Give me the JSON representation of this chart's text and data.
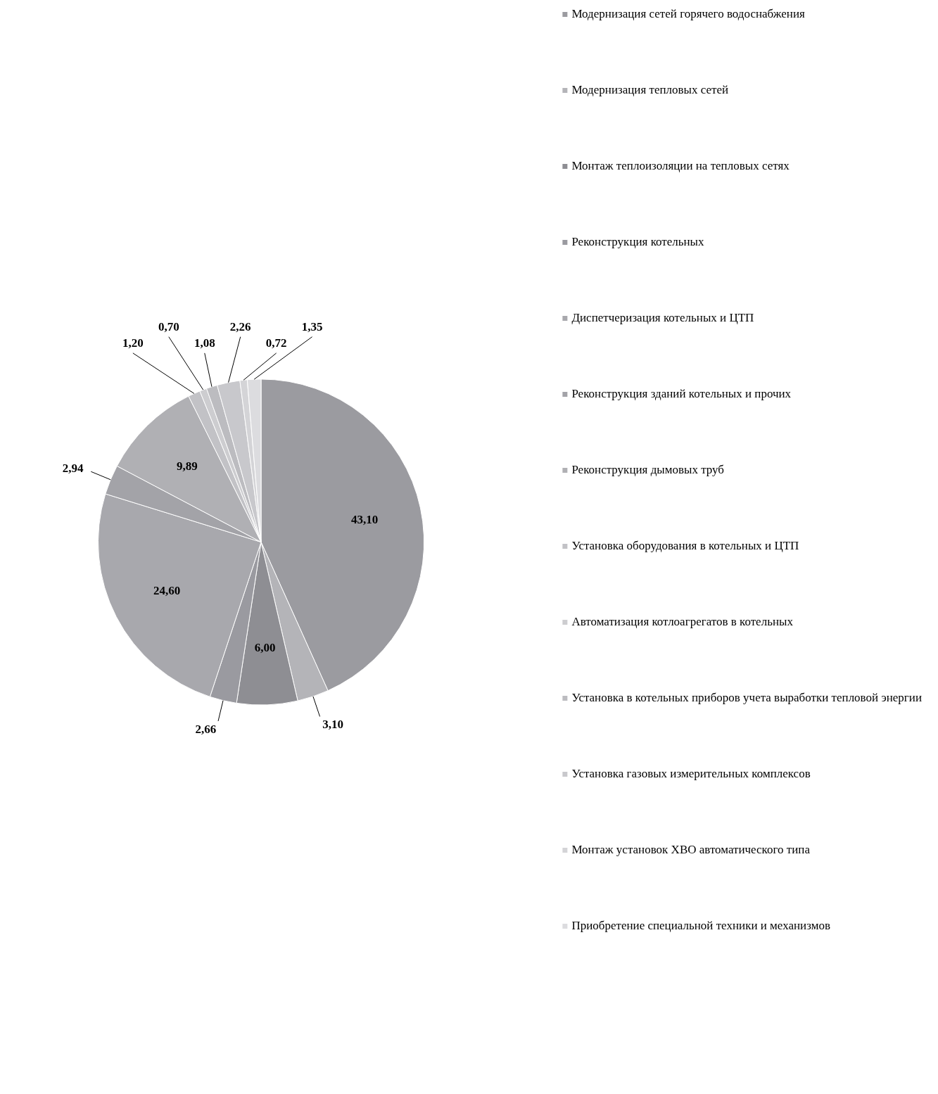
{
  "chart_data": {
    "type": "pie",
    "categories": [
      "Модернизация сетей горячего водоснабжения",
      "Модернизация тепловых сетей",
      "Монтаж теплоизоляции на тепловых сетях",
      "Реконструкция котельных",
      "Диспетчеризация котельных и ЦТП",
      "Реконструкция зданий котельных и прочих",
      "Реконструкция дымовых труб",
      "Установка оборудования в котельных и ЦТП",
      "Автоматизация котлоагрегатов в котельных",
      "Установка в котельных приборов учета выработки тепловой энергии",
      "Установка газовых измерительных комплексов",
      "Монтаж установок ХВО автоматического типа",
      "Приобретение специальной техники и механизмов"
    ],
    "values": [
      43.1,
      3.1,
      6.0,
      2.66,
      24.6,
      2.94,
      9.89,
      1.2,
      0.7,
      1.08,
      2.26,
      0.72,
      1.35
    ],
    "colors": [
      "#9b9ba0",
      "#b4b4b8",
      "#8e8e93",
      "#9a9aa0",
      "#a8a8ad",
      "#a3a3a8",
      "#b0b0b4",
      "#c2c2c6",
      "#cdcdd0",
      "#bcbcc0",
      "#c8c8cc",
      "#d4d4d7",
      "#dcdcdf"
    ],
    "value_labels": [
      "43,10",
      "3,10",
      "6,00",
      "2,66",
      "24,60",
      "2,94",
      "9,89",
      "1,20",
      "0,70",
      "1,08",
      "2,26",
      "0,72",
      "1,35"
    ],
    "legend": "right"
  }
}
